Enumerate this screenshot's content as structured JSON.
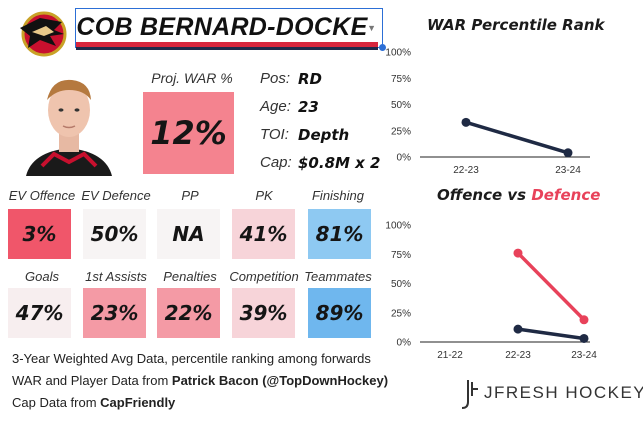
{
  "player": {
    "name_visible": "ACOB BERNARD-DOCKE",
    "proj_war_label": "Proj. WAR %",
    "proj_war_value": "12%",
    "proj_war_color": "#f4838f",
    "info": [
      {
        "key": "Pos:",
        "value": "RD"
      },
      {
        "key": "Age:",
        "value": "23"
      },
      {
        "key": "TOI:",
        "value": "Depth"
      },
      {
        "key": "Cap:",
        "value": "$0.8M x 2"
      }
    ]
  },
  "stats_row1": [
    {
      "label": "EV Offence",
      "value": "3%",
      "color": "#f0566a"
    },
    {
      "label": "EV Defence",
      "value": "50%",
      "color": "#f7f4f4"
    },
    {
      "label": "PP",
      "value": "NA",
      "color": "#f7f4f4"
    },
    {
      "label": "PK",
      "value": "41%",
      "color": "#f7d4d9"
    },
    {
      "label": "Finishing",
      "value": "81%",
      "color": "#8ec9f2"
    }
  ],
  "stats_row2": [
    {
      "label": "Goals",
      "value": "47%",
      "color": "#f7eeef"
    },
    {
      "label": "1st Assists",
      "value": "23%",
      "color": "#f49aa5"
    },
    {
      "label": "Penalties",
      "value": "22%",
      "color": "#f49aa5"
    },
    {
      "label": "Competition",
      "value": "39%",
      "color": "#f7d4d9"
    },
    {
      "label": "Teammates",
      "value": "89%",
      "color": "#6fb7ee"
    }
  ],
  "footer": {
    "line1": "3-Year Weighted Avg Data, percentile ranking among forwards",
    "line2_prefix": "WAR and Player Data from ",
    "line2_bold": "Patrick Bacon (@TopDownHockey)",
    "line3_prefix": "Cap Data from ",
    "line3_bold": "CapFriendly"
  },
  "brand": {
    "text": "JFRESH HOCKEY"
  },
  "chart_data": [
    {
      "type": "line",
      "title": "WAR Percentile Rank",
      "categories": [
        "22-23",
        "23-24"
      ],
      "series": [
        {
          "values": [
            33,
            4
          ],
          "color": "#1f2a44"
        }
      ],
      "ylim": [
        0,
        100
      ],
      "yticks": [
        "0%",
        "25%",
        "50%",
        "75%",
        "100%"
      ],
      "grid": false
    },
    {
      "type": "line",
      "title": "Offence vs Defence",
      "title_parts": [
        "Offence",
        " vs ",
        "Defence"
      ],
      "categories": [
        "21-22",
        "22-23",
        "23-24"
      ],
      "series": [
        {
          "name": "Offence",
          "values": [
            null,
            11,
            3
          ],
          "color": "#1f2a44"
        },
        {
          "name": "Defence",
          "values": [
            null,
            76,
            19
          ],
          "color": "#e8425a"
        }
      ],
      "ylim": [
        0,
        100
      ],
      "yticks": [
        "0%",
        "25%",
        "50%",
        "75%",
        "100%"
      ],
      "grid": false
    }
  ]
}
